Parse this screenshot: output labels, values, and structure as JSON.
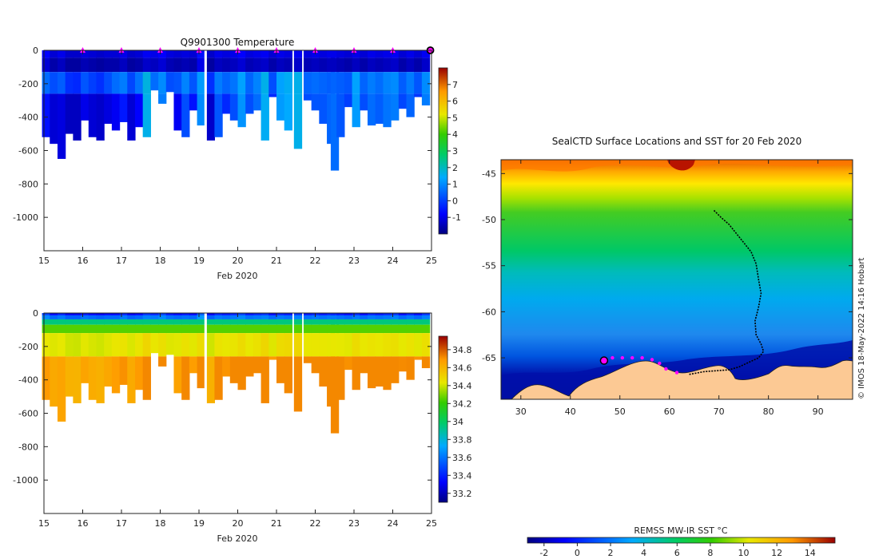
{
  "chart_data": [
    {
      "type": "heatmap",
      "name": "temperature-section",
      "title": "Q9901300  Temperature",
      "xlabel": "Feb 2020",
      "ylabel": "",
      "xlim": [
        15,
        25
      ],
      "ylim": [
        -1200,
        0
      ],
      "x_ticks": [
        "15",
        "16",
        "17",
        "18",
        "19",
        "20",
        "21",
        "22",
        "23",
        "24",
        "25"
      ],
      "y_ticks": [
        "0",
        "-200",
        "-400",
        "-600",
        "-800",
        "-1000"
      ],
      "y_tick_values": [
        0,
        -200,
        -400,
        -600,
        -800,
        -1000
      ],
      "marker_days": [
        16,
        17,
        18,
        19,
        20,
        21,
        22,
        23,
        24
      ],
      "current_day": 25,
      "colorbar": {
        "min": -2,
        "max": 8,
        "ticks": [
          "-1",
          "0",
          "1",
          "2",
          "3",
          "4",
          "5",
          "6",
          "7"
        ],
        "tick_values": [
          -1,
          0,
          1,
          2,
          3,
          4,
          5,
          6,
          7
        ]
      },
      "profiles": [
        {
          "x": 15.05,
          "depth": 520,
          "surface": -0.8,
          "mid": 0.6,
          "deep": -0.6
        },
        {
          "x": 15.25,
          "depth": 560,
          "surface": -1.2,
          "mid": 0.2,
          "deep": -1.2
        },
        {
          "x": 15.45,
          "depth": 650,
          "surface": -1.0,
          "mid": 0.4,
          "deep": -1.1
        },
        {
          "x": 15.65,
          "depth": 500,
          "surface": -1.3,
          "mid": -0.2,
          "deep": -1.4
        },
        {
          "x": 15.85,
          "depth": 540,
          "surface": -1.3,
          "mid": -0.3,
          "deep": -1.4
        },
        {
          "x": 16.05,
          "depth": 420,
          "surface": -1.1,
          "mid": 0.3,
          "deep": -1.0
        },
        {
          "x": 16.25,
          "depth": 520,
          "surface": -1.2,
          "mid": 0.0,
          "deep": -1.2
        },
        {
          "x": 16.45,
          "depth": 540,
          "surface": -1.3,
          "mid": -0.2,
          "deep": -1.3
        },
        {
          "x": 16.65,
          "depth": 440,
          "surface": -1.2,
          "mid": 0.2,
          "deep": -1.1
        },
        {
          "x": 16.85,
          "depth": 480,
          "surface": -1.2,
          "mid": 0.6,
          "deep": -0.9
        },
        {
          "x": 17.05,
          "depth": 430,
          "surface": -1.0,
          "mid": 0.8,
          "deep": -0.5
        },
        {
          "x": 17.25,
          "depth": 540,
          "surface": -1.3,
          "mid": 0.1,
          "deep": -1.2
        },
        {
          "x": 17.45,
          "depth": 460,
          "surface": -1.2,
          "mid": 0.7,
          "deep": -0.8
        },
        {
          "x": 17.65,
          "depth": 520,
          "surface": -0.9,
          "mid": 1.7,
          "deep": 1.6
        },
        {
          "x": 17.85,
          "depth": 240,
          "surface": -1.0,
          "mid": 0.6,
          "deep": 0.3
        },
        {
          "x": 18.05,
          "depth": 320,
          "surface": -0.8,
          "mid": 1.0,
          "deep": 0.8
        },
        {
          "x": 18.25,
          "depth": 250,
          "surface": -1.1,
          "mid": 0.2,
          "deep": -0.2
        },
        {
          "x": 18.45,
          "depth": 480,
          "surface": -1.2,
          "mid": 0.3,
          "deep": -0.9
        },
        {
          "x": 18.65,
          "depth": 520,
          "surface": -1.1,
          "mid": 0.9,
          "deep": 0.2
        },
        {
          "x": 18.85,
          "depth": 360,
          "surface": -1.2,
          "mid": 0.3,
          "deep": -0.6
        },
        {
          "x": 19.05,
          "depth": 450,
          "surface": -0.6,
          "mid": 1.2,
          "deep": 1.0
        },
        {
          "x": 19.3,
          "depth": 540,
          "surface": -1.3,
          "mid": -0.2,
          "deep": -1.3
        },
        {
          "x": 19.5,
          "depth": 520,
          "surface": -1.0,
          "mid": 0.8,
          "deep": 0.3
        },
        {
          "x": 19.7,
          "depth": 380,
          "surface": -1.1,
          "mid": 0.5,
          "deep": -0.3
        },
        {
          "x": 19.9,
          "depth": 420,
          "surface": -1.0,
          "mid": 0.7,
          "deep": 0.2
        },
        {
          "x": 20.1,
          "depth": 460,
          "surface": -0.8,
          "mid": 1.3,
          "deep": 1.1
        },
        {
          "x": 20.3,
          "depth": 380,
          "surface": -1.1,
          "mid": 0.5,
          "deep": 0.2
        },
        {
          "x": 20.5,
          "depth": 360,
          "surface": -1.0,
          "mid": 0.9,
          "deep": 0.6
        },
        {
          "x": 20.7,
          "depth": 540,
          "surface": -0.9,
          "mid": 1.6,
          "deep": 1.5
        },
        {
          "x": 20.9,
          "depth": 280,
          "surface": -1.2,
          "mid": 0.2,
          "deep": -0.3
        },
        {
          "x": 21.1,
          "depth": 420,
          "surface": -1.0,
          "mid": 1.3,
          "deep": 1.2
        },
        {
          "x": 21.3,
          "depth": 480,
          "surface": -1.1,
          "mid": 1.5,
          "deep": 1.4
        },
        {
          "x": 21.55,
          "depth": 590,
          "surface": -0.9,
          "mid": 1.6,
          "deep": 1.6
        },
        {
          "x": 21.8,
          "depth": 300,
          "surface": -1.1,
          "mid": 0.5,
          "deep": 0.2
        },
        {
          "x": 22.0,
          "depth": 360,
          "surface": -1.0,
          "mid": 0.6,
          "deep": 0.3
        },
        {
          "x": 22.2,
          "depth": 440,
          "surface": -1.1,
          "mid": 0.5,
          "deep": 0.3
        },
        {
          "x": 22.4,
          "depth": 560,
          "surface": -1.0,
          "mid": 0.4,
          "deep": 0.5
        },
        {
          "x": 22.5,
          "depth": 720,
          "surface": -1.0,
          "mid": 0.5,
          "deep": 0.6
        },
        {
          "x": 22.65,
          "depth": 520,
          "surface": -1.1,
          "mid": 0.4,
          "deep": 0.3
        },
        {
          "x": 22.85,
          "depth": 340,
          "surface": -1.2,
          "mid": 0.3,
          "deep": 0.0
        },
        {
          "x": 23.05,
          "depth": 460,
          "surface": -1.0,
          "mid": 1.3,
          "deep": 1.2
        },
        {
          "x": 23.25,
          "depth": 360,
          "surface": -1.2,
          "mid": 0.5,
          "deep": 0.2
        },
        {
          "x": 23.45,
          "depth": 450,
          "surface": -1.0,
          "mid": 0.8,
          "deep": 0.6
        },
        {
          "x": 23.65,
          "depth": 440,
          "surface": -1.1,
          "mid": 0.6,
          "deep": 0.4
        },
        {
          "x": 23.85,
          "depth": 460,
          "surface": -1.0,
          "mid": 0.9,
          "deep": 0.7
        },
        {
          "x": 24.05,
          "depth": 420,
          "surface": -0.9,
          "mid": 1.0,
          "deep": 0.8
        },
        {
          "x": 24.25,
          "depth": 350,
          "surface": -1.2,
          "mid": 0.4,
          "deep": 0.1
        },
        {
          "x": 24.45,
          "depth": 400,
          "surface": -1.0,
          "mid": 0.8,
          "deep": 0.5
        },
        {
          "x": 24.65,
          "depth": 280,
          "surface": -1.2,
          "mid": 0.3,
          "deep": -0.1
        },
        {
          "x": 24.85,
          "depth": 330,
          "surface": -0.9,
          "mid": 1.0,
          "deep": 0.8
        }
      ]
    },
    {
      "type": "heatmap",
      "name": "salinity-section",
      "title": "",
      "xlabel": "Feb 2020",
      "ylabel": "",
      "xlim": [
        15,
        25
      ],
      "ylim": [
        -1200,
        0
      ],
      "x_ticks": [
        "15",
        "16",
        "17",
        "18",
        "19",
        "20",
        "21",
        "22",
        "23",
        "24",
        "25"
      ],
      "y_ticks": [
        "0",
        "-200",
        "-400",
        "-600",
        "-800",
        "-1000"
      ],
      "y_tick_values": [
        0,
        -200,
        -400,
        -600,
        -800,
        -1000
      ],
      "colorbar": {
        "min": 33.1,
        "max": 34.95,
        "ticks": [
          "33.2",
          "33.4",
          "33.6",
          "33.8",
          "34",
          "34.2",
          "34.4",
          "34.6",
          "34.8"
        ],
        "tick_values": [
          33.2,
          33.4,
          33.6,
          33.8,
          34.0,
          34.2,
          34.4,
          34.6,
          34.8
        ]
      }
    },
    {
      "type": "heatmap",
      "name": "sst-map",
      "title": "SealCTD Surface Locations and SST for 20 Feb 2020",
      "xlim": [
        26,
        97
      ],
      "ylim": [
        -69.5,
        -43.5
      ],
      "x_ticks": [
        "30",
        "40",
        "50",
        "60",
        "70",
        "80",
        "90"
      ],
      "x_tick_values": [
        30,
        40,
        50,
        60,
        70,
        80,
        90
      ],
      "y_ticks": [
        "-45",
        "-50",
        "-55",
        "-60",
        "-65"
      ],
      "y_tick_values": [
        -45,
        -50,
        -55,
        -60,
        -65
      ],
      "colorbar": {
        "label": "REMSS MW-IR SST °C",
        "min": -3,
        "max": 15.5,
        "ticks": [
          "-2",
          "0",
          "2",
          "4",
          "6",
          "8",
          "10",
          "12",
          "14"
        ],
        "tick_values": [
          -2,
          0,
          2,
          4,
          6,
          8,
          10,
          12,
          14
        ]
      },
      "track": [
        [
          69.0,
          -49.0
        ],
        [
          70.5,
          -49.8
        ],
        [
          72.0,
          -50.5
        ],
        [
          73.5,
          -51.5
        ],
        [
          75.0,
          -52.5
        ],
        [
          76.5,
          -53.5
        ],
        [
          77.5,
          -54.8
        ],
        [
          78.0,
          -56.5
        ],
        [
          78.5,
          -58.0
        ],
        [
          78.0,
          -59.5
        ],
        [
          77.3,
          -61.0
        ],
        [
          77.5,
          -62.5
        ],
        [
          78.5,
          -63.5
        ],
        [
          79.0,
          -64.3
        ],
        [
          78.0,
          -65.0
        ],
        [
          76.0,
          -65.5
        ],
        [
          74.0,
          -66.0
        ],
        [
          72.0,
          -66.3
        ],
        [
          69.5,
          -66.4
        ],
        [
          67.0,
          -66.5
        ],
        [
          64.0,
          -66.8
        ]
      ],
      "recent_positions": [
        [
          48.5,
          -65.0
        ],
        [
          50.5,
          -65.0
        ],
        [
          52.5,
          -65.0
        ],
        [
          54.5,
          -65.0
        ],
        [
          56.5,
          -65.2
        ],
        [
          58.0,
          -65.6
        ],
        [
          59.3,
          -66.2
        ],
        [
          61.5,
          -66.6
        ]
      ],
      "start_position": [
        46.8,
        -65.3
      ]
    }
  ],
  "credit": "© IMOS 18-May-2022 14:16 Hobart",
  "colors": {
    "axis": "#222222",
    "marker": "#ff00ff",
    "land": "#fcc994",
    "track": "#000000"
  }
}
